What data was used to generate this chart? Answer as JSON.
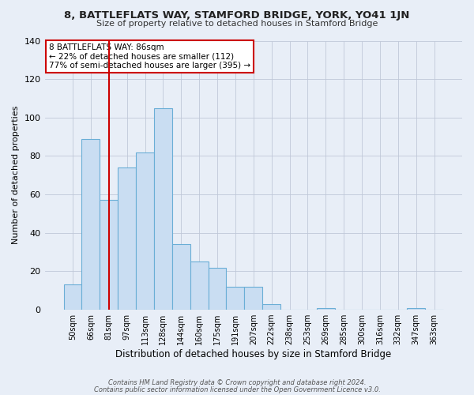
{
  "title": "8, BATTLEFLATS WAY, STAMFORD BRIDGE, YORK, YO41 1JN",
  "subtitle": "Size of property relative to detached houses in Stamford Bridge",
  "xlabel": "Distribution of detached houses by size in Stamford Bridge",
  "ylabel": "Number of detached properties",
  "bar_labels": [
    "50sqm",
    "66sqm",
    "81sqm",
    "97sqm",
    "113sqm",
    "128sqm",
    "144sqm",
    "160sqm",
    "175sqm",
    "191sqm",
    "207sqm",
    "222sqm",
    "238sqm",
    "253sqm",
    "269sqm",
    "285sqm",
    "300sqm",
    "316sqm",
    "332sqm",
    "347sqm",
    "363sqm"
  ],
  "bar_heights": [
    13,
    89,
    57,
    74,
    82,
    105,
    34,
    25,
    22,
    12,
    12,
    3,
    0,
    0,
    1,
    0,
    0,
    0,
    0,
    1,
    0
  ],
  "bar_color": "#c9ddf2",
  "bar_edge_color": "#6aaed6",
  "vline_x": 2,
  "vline_color": "#cc0000",
  "ylim": [
    0,
    140
  ],
  "yticks": [
    0,
    20,
    40,
    60,
    80,
    100,
    120,
    140
  ],
  "annotation_title": "8 BATTLEFLATS WAY: 86sqm",
  "annotation_line1": "← 22% of detached houses are smaller (112)",
  "annotation_line2": "77% of semi-detached houses are larger (395) →",
  "annotation_box_color": "#ffffff",
  "annotation_box_edge": "#cc0000",
  "footer1": "Contains HM Land Registry data © Crown copyright and database right 2024.",
  "footer2": "Contains public sector information licensed under the Open Government Licence v3.0.",
  "bg_color": "#e8eef7",
  "plot_bg_color": "#e8eef7"
}
